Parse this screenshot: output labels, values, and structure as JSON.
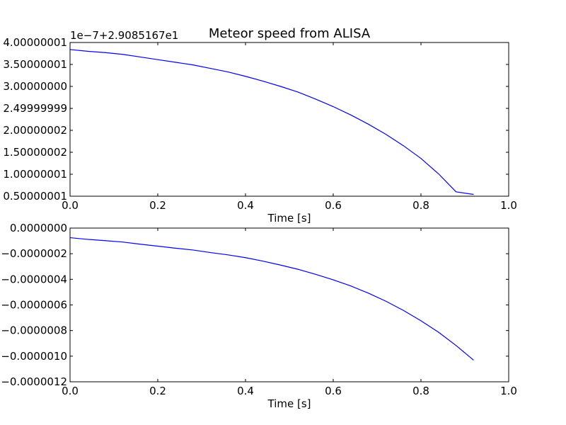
{
  "title": "Meteor speed from  ALISA",
  "colors": {
    "line": "#0000ff",
    "axes": "#000000",
    "background": "#ffffff"
  },
  "chart_data": [
    {
      "type": "line",
      "offset_label": "1e−7+2.9085167e1",
      "xlabel": "Time [s]",
      "ylabel": "",
      "xlim": [
        0.0,
        1.0
      ],
      "ylim": [
        0.50000001,
        4.00000001
      ],
      "grid": false,
      "x_ticks": [
        "0.0",
        "0.2",
        "0.4",
        "0.6",
        "0.8",
        "1.0"
      ],
      "y_ticks": [
        "0.50000001",
        "1.00000001",
        "1.50000002",
        "2.00000002",
        "2.49999999",
        "3.00000000",
        "3.50000001",
        "4.00000001"
      ],
      "series": [
        {
          "x": [
            0.0,
            0.04,
            0.08,
            0.12,
            0.16,
            0.2,
            0.24,
            0.28,
            0.32,
            0.36,
            0.4,
            0.44,
            0.48,
            0.52,
            0.56,
            0.6,
            0.64,
            0.68,
            0.72,
            0.76,
            0.8,
            0.84,
            0.88,
            0.92
          ],
          "y": [
            3.84,
            3.8,
            3.77,
            3.73,
            3.67,
            3.61,
            3.55,
            3.49,
            3.41,
            3.33,
            3.23,
            3.12,
            3.0,
            2.87,
            2.71,
            2.54,
            2.35,
            2.14,
            1.91,
            1.65,
            1.36,
            1.01,
            0.6,
            0.54
          ]
        }
      ]
    },
    {
      "type": "line",
      "offset_label": "",
      "xlabel": "Time [s]",
      "ylabel": "",
      "xlim": [
        0.0,
        1.0
      ],
      "ylim": [
        -1.2e-06,
        0.0
      ],
      "grid": false,
      "x_ticks": [
        "0.0",
        "0.2",
        "0.4",
        "0.6",
        "0.8",
        "1.0"
      ],
      "y_ticks": [
        "−0.0000012",
        "−0.0000010",
        "−0.0000008",
        "−0.0000006",
        "−0.0000004",
        "−0.0000002",
        "0.0000000"
      ],
      "series": [
        {
          "x": [
            0.0,
            0.04,
            0.08,
            0.12,
            0.16,
            0.2,
            0.24,
            0.28,
            0.32,
            0.36,
            0.4,
            0.44,
            0.48,
            0.52,
            0.56,
            0.6,
            0.64,
            0.68,
            0.72,
            0.76,
            0.8,
            0.84,
            0.88,
            0.92
          ],
          "y": [
            -7.5e-08,
            -8.8e-08,
            -9.8e-08,
            -1.09e-07,
            -1.26e-07,
            -1.41e-07,
            -1.57e-07,
            -1.71e-07,
            -1.91e-07,
            -2.09e-07,
            -2.31e-07,
            -2.58e-07,
            -2.89e-07,
            -3.22e-07,
            -3.61e-07,
            -4.04e-07,
            -4.52e-07,
            -5.08e-07,
            -5.71e-07,
            -6.43e-07,
            -7.24e-07,
            -8.13e-07,
            -9.17e-07,
            -1.031e-06
          ]
        }
      ]
    }
  ]
}
